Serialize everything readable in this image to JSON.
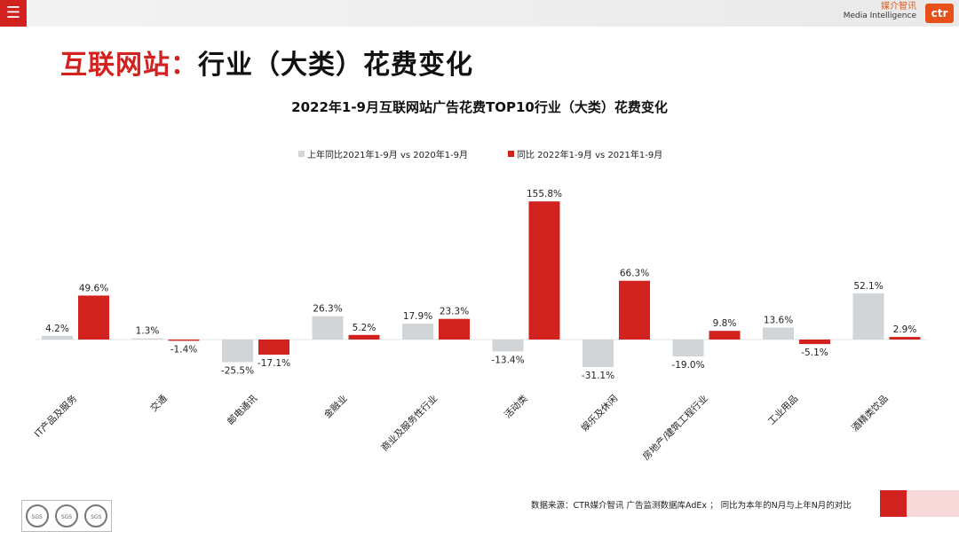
{
  "topbar": {
    "menu_icon": "menu-icon",
    "brand_cn": "媒介智讯",
    "brand_en": "Media Intelligence",
    "logo_text": "ctr"
  },
  "page_title": {
    "part1": "互联网站",
    "colon": "：",
    "part2": "行业（大类）花费变化"
  },
  "colors": {
    "gray_series": "#d1d5d8",
    "red_series": "#d2221f",
    "accent": "#d2221f"
  },
  "chart_data": {
    "type": "bar",
    "title": "2022年1-9月互联网站广告花费TOP10行业（大类）花费变化",
    "categories": [
      "IT产品及服务",
      "交通",
      "邮电通讯",
      "金融业",
      "商业及服务性行业",
      "活动类",
      "娱乐及休闲",
      "房地产/建筑工程行业",
      "工业用品",
      "酒精类饮品"
    ],
    "series": [
      {
        "name": "上年同比2021年1-9月  vs  2020年1-9月",
        "values": [
          4.2,
          1.3,
          -25.5,
          26.3,
          17.9,
          -13.4,
          -31.1,
          -19.0,
          13.6,
          52.1
        ],
        "labels": [
          "4.2%",
          "1.3%",
          "-25.5%",
          "26.3%",
          "17.9%",
          "-13.4%",
          "-31.1%",
          "-19.0%",
          "13.6%",
          "52.1%"
        ]
      },
      {
        "name": "同比 2022年1-9月  vs  2021年1-9月",
        "values": [
          49.6,
          -1.4,
          -17.1,
          5.2,
          23.3,
          155.8,
          66.3,
          9.8,
          -5.1,
          2.9
        ],
        "labels": [
          "49.6%",
          "-1.4%",
          "-17.1%",
          "5.2%",
          "23.3%",
          "155.8%",
          "66.3%",
          "9.8%",
          "-5.1%",
          "2.9%"
        ]
      }
    ],
    "xlabel": "",
    "ylabel": "",
    "ylim": [
      -50,
      160
    ],
    "legend": "top-center",
    "grid": false
  },
  "footer": {
    "source": "数据来源：CTR媒介智讯 广告监测数据库AdEx  ；  同比为本年的N月与上年N月的对比",
    "seal_text": "SGS"
  }
}
